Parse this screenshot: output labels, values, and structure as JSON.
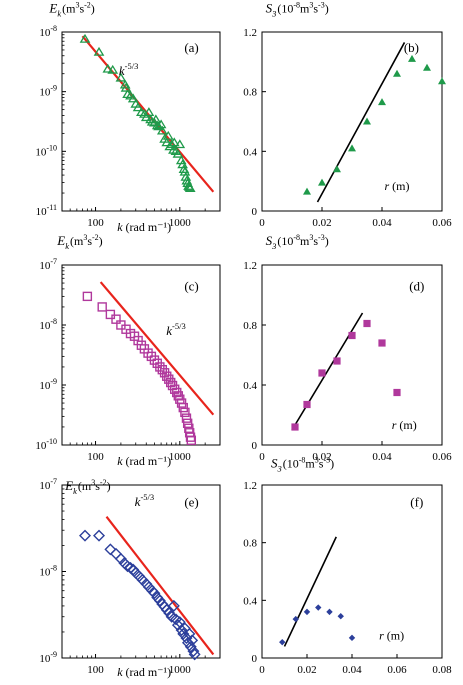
{
  "chart_data": [
    {
      "type": "scatter",
      "panel_label": "(a)",
      "ylabel_html": {
        "main": "E",
        "sub": "k",
        "unit_pre": "(m",
        "sup1": "3",
        "mid": "s",
        "sup2": "-2",
        "unit_post": ")"
      },
      "xlabel": "k (rad m⁻¹)",
      "x_scale": "log",
      "y_scale": "log",
      "xlim": [
        40,
        3000
      ],
      "ylim": [
        1e-11,
        1e-08
      ],
      "x_ticks": [
        {
          "v": 100,
          "label": "100"
        },
        {
          "v": 1000,
          "label": "1000"
        }
      ],
      "y_ticks": [
        {
          "v": 1e-11,
          "exp": "-11"
        },
        {
          "v": 1e-10,
          "exp": "-10"
        },
        {
          "v": 1e-09,
          "exp": "-9"
        },
        {
          "v": 1e-08,
          "exp": "-8"
        }
      ],
      "slope_label": {
        "base": "k",
        "exp": "-5/3"
      },
      "line_color": "#e8241c",
      "marker": "triangle",
      "marker_color": "#1f9a4a",
      "fit_line": [
        [
          70,
          8.5e-09
        ],
        [
          2500,
          2.1e-11
        ]
      ],
      "points": [
        [
          75,
          7.6e-09
        ],
        [
          110,
          4.6e-09
        ],
        [
          140,
          2.4e-09
        ],
        [
          160,
          2.3e-09
        ],
        [
          200,
          1.7e-09
        ],
        [
          225,
          1.3e-09
        ],
        [
          230,
          1.15e-09
        ],
        [
          240,
          9e-10
        ],
        [
          260,
          8.5e-10
        ],
        [
          280,
          7.6e-10
        ],
        [
          300,
          6.2e-10
        ],
        [
          320,
          5.4e-10
        ],
        [
          350,
          4.5e-10
        ],
        [
          380,
          4.2e-10
        ],
        [
          400,
          3.7e-10
        ],
        [
          430,
          4.5e-10
        ],
        [
          450,
          3.4e-10
        ],
        [
          470,
          3.1e-10
        ],
        [
          500,
          3e-10
        ],
        [
          520,
          3.4e-10
        ],
        [
          540,
          2.7e-10
        ],
        [
          560,
          2.6e-10
        ],
        [
          600,
          2.8e-10
        ],
        [
          620,
          2.2e-10
        ],
        [
          660,
          1.6e-10
        ],
        [
          700,
          1.4e-10
        ],
        [
          730,
          1.8e-10
        ],
        [
          760,
          1.2e-10
        ],
        [
          800,
          1.3e-10
        ],
        [
          840,
          1.05e-10
        ],
        [
          860,
          1.4e-10
        ],
        [
          900,
          1e-10
        ],
        [
          950,
          9e-11
        ],
        [
          1000,
          1.3e-10
        ],
        [
          1040,
          7e-11
        ],
        [
          1080,
          6e-11
        ],
        [
          1120,
          5e-11
        ],
        [
          1150,
          4.5e-11
        ],
        [
          1180,
          3.7e-11
        ],
        [
          1210,
          3.2e-11
        ],
        [
          1240,
          2.9e-11
        ],
        [
          1270,
          2.6e-11
        ],
        [
          1300,
          2.5e-11
        ],
        [
          1330,
          2.4e-11
        ]
      ]
    },
    {
      "type": "scatter",
      "panel_label": "(b)",
      "ylabel_html": {
        "main": "S",
        "sub": "3",
        "unit_pre": "(10",
        "sup1": "-8",
        "mid": "m",
        "sup2": "3",
        "unit_post": "s",
        "sup3": "-3",
        "unit_end": ")"
      },
      "xlabel": "r (m)",
      "xlim": [
        0,
        0.06
      ],
      "ylim": [
        0,
        1.2
      ],
      "x_ticks": [
        {
          "v": 0,
          "label": "0"
        },
        {
          "v": 0.02,
          "label": "0.02"
        },
        {
          "v": 0.04,
          "label": "0.04"
        },
        {
          "v": 0.06,
          "label": "0.06"
        }
      ],
      "y_ticks": [
        {
          "v": 0,
          "label": "0"
        },
        {
          "v": 0.4,
          "label": "0.4"
        },
        {
          "v": 0.8,
          "label": "0.8"
        },
        {
          "v": 1.2,
          "label": "1.2"
        }
      ],
      "line_color": "#000000",
      "marker": "filled-triangle",
      "marker_color": "#1f9a4a",
      "fit_line": [
        [
          0.0185,
          0.06
        ],
        [
          0.0475,
          1.13
        ]
      ],
      "points": [
        [
          0.015,
          0.13
        ],
        [
          0.02,
          0.19
        ],
        [
          0.025,
          0.28
        ],
        [
          0.03,
          0.42
        ],
        [
          0.035,
          0.6
        ],
        [
          0.04,
          0.73
        ],
        [
          0.045,
          0.92
        ],
        [
          0.05,
          1.02
        ],
        [
          0.055,
          0.96
        ],
        [
          0.06,
          0.87
        ]
      ]
    },
    {
      "type": "scatter",
      "panel_label": "(c)",
      "ylabel_html": {
        "main": "E",
        "sub": "k",
        "unit_pre": "(m",
        "sup1": "3",
        "mid": "s",
        "sup2": "-2",
        "unit_post": ")"
      },
      "xlabel": "k (rad m⁻¹)",
      "x_scale": "log",
      "y_scale": "log",
      "xlim": [
        40,
        3000
      ],
      "ylim": [
        1e-10,
        1e-07
      ],
      "x_ticks": [
        {
          "v": 100,
          "label": "100"
        },
        {
          "v": 1000,
          "label": "1000"
        }
      ],
      "y_ticks": [
        {
          "v": 1e-10,
          "exp": "-10"
        },
        {
          "v": 1e-09,
          "exp": "-9"
        },
        {
          "v": 1e-08,
          "exp": "-8"
        },
        {
          "v": 1e-07,
          "exp": "-7"
        }
      ],
      "slope_label": {
        "base": "k",
        "exp": "-5/3"
      },
      "line_color": "#e8241c",
      "marker": "square",
      "marker_color": "#b0389c",
      "fit_line": [
        [
          115,
          5.2e-08
        ],
        [
          2500,
          3.2e-10
        ]
      ],
      "points": [
        [
          80,
          3e-08
        ],
        [
          120,
          2e-08
        ],
        [
          150,
          1.5e-08
        ],
        [
          175,
          1.25e-08
        ],
        [
          200,
          1e-08
        ],
        [
          230,
          8.5e-09
        ],
        [
          260,
          7.2e-09
        ],
        [
          290,
          6.5e-09
        ],
        [
          320,
          5.5e-09
        ],
        [
          350,
          4.6e-09
        ],
        [
          380,
          4e-09
        ],
        [
          420,
          3.4e-09
        ],
        [
          460,
          3e-09
        ],
        [
          500,
          2.6e-09
        ],
        [
          540,
          2.3e-09
        ],
        [
          580,
          2e-09
        ],
        [
          620,
          1.8e-09
        ],
        [
          660,
          1.6e-09
        ],
        [
          700,
          1.4e-09
        ],
        [
          740,
          1.25e-09
        ],
        [
          780,
          1.1e-09
        ],
        [
          820,
          9.8e-10
        ],
        [
          870,
          8.5e-10
        ],
        [
          920,
          7.5e-10
        ],
        [
          960,
          6.6e-10
        ],
        [
          1000,
          5.8e-10
        ],
        [
          1050,
          5e-10
        ],
        [
          1100,
          4.2e-10
        ],
        [
          1150,
          3.5e-10
        ],
        [
          1200,
          2.8e-10
        ],
        [
          1240,
          2.3e-10
        ],
        [
          1280,
          1.9e-10
        ],
        [
          1310,
          1.6e-10
        ],
        [
          1340,
          1.35e-10
        ],
        [
          1370,
          1.2e-10
        ]
      ]
    },
    {
      "type": "scatter",
      "panel_label": "(d)",
      "ylabel_html": {
        "main": "S",
        "sub": "3",
        "unit_pre": "(10",
        "sup1": "-8",
        "mid": "m",
        "sup2": "3",
        "unit_post": "s",
        "sup3": "-3",
        "unit_end": ")"
      },
      "xlabel": "r (m)",
      "xlim": [
        0,
        0.06
      ],
      "ylim": [
        0,
        1.2
      ],
      "x_ticks": [
        {
          "v": 0,
          "label": "0"
        },
        {
          "v": 0.02,
          "label": "0.02"
        },
        {
          "v": 0.04,
          "label": "0.04"
        },
        {
          "v": 0.06,
          "label": "0.06"
        }
      ],
      "y_ticks": [
        {
          "v": 0,
          "label": "0"
        },
        {
          "v": 0.4,
          "label": "0.4"
        },
        {
          "v": 0.8,
          "label": "0.8"
        },
        {
          "v": 1.2,
          "label": "1.2"
        }
      ],
      "line_color": "#000000",
      "marker": "filled-square",
      "marker_color": "#b0389c",
      "fit_line": [
        [
          0.01,
          0.1
        ],
        [
          0.0335,
          0.88
        ]
      ],
      "points": [
        [
          0.011,
          0.12
        ],
        [
          0.015,
          0.27
        ],
        [
          0.02,
          0.48
        ],
        [
          0.025,
          0.56
        ],
        [
          0.03,
          0.73
        ],
        [
          0.035,
          0.81
        ],
        [
          0.04,
          0.68
        ],
        [
          0.045,
          0.35
        ]
      ]
    },
    {
      "type": "scatter",
      "panel_label": "(e)",
      "ylabel_html": {
        "main": "E",
        "sub": "k",
        "unit_pre": "(m",
        "sup1": "3",
        "mid": "s",
        "sup2": "-2",
        "unit_post": ")"
      },
      "xlabel": "k (rad m⁻¹)",
      "x_scale": "log",
      "y_scale": "log",
      "xlim": [
        40,
        3000
      ],
      "ylim": [
        1e-09,
        1e-07
      ],
      "x_ticks": [
        {
          "v": 100,
          "label": "100"
        },
        {
          "v": 1000,
          "label": "1000"
        }
      ],
      "y_ticks": [
        {
          "v": 1e-09,
          "exp": "-9"
        },
        {
          "v": 1e-08,
          "exp": "-8"
        },
        {
          "v": 1e-07,
          "exp": "-7"
        }
      ],
      "slope_label": {
        "base": "k",
        "exp": "-5/3"
      },
      "line_color": "#e8241c",
      "marker": "diamond",
      "marker_color": "#2c3f9b",
      "fit_line": [
        [
          135,
          4.3e-08
        ],
        [
          2500,
          1.1e-09
        ]
      ],
      "points": [
        [
          75,
          2.6e-08
        ],
        [
          110,
          2.6e-08
        ],
        [
          150,
          1.8e-08
        ],
        [
          175,
          1.6e-08
        ],
        [
          200,
          1.4e-08
        ],
        [
          220,
          1.25e-08
        ],
        [
          240,
          1.15e-08
        ],
        [
          260,
          1.1e-08
        ],
        [
          280,
          1.05e-08
        ],
        [
          300,
          9.6e-09
        ],
        [
          330,
          8.8e-09
        ],
        [
          360,
          8e-09
        ],
        [
          400,
          7.2e-09
        ],
        [
          430,
          6.6e-09
        ],
        [
          470,
          6e-09
        ],
        [
          500,
          5.6e-09
        ],
        [
          540,
          5e-09
        ],
        [
          580,
          4.6e-09
        ],
        [
          620,
          4.2e-09
        ],
        [
          660,
          3.9e-09
        ],
        [
          700,
          3.6e-09
        ],
        [
          750,
          3.3e-09
        ],
        [
          800,
          3e-09
        ],
        [
          850,
          4e-09
        ],
        [
          900,
          2.8e-09
        ],
        [
          950,
          2.4e-09
        ],
        [
          1000,
          2.6e-09
        ],
        [
          1050,
          2.1e-09
        ],
        [
          1100,
          1.9e-09
        ],
        [
          1150,
          2.2e-09
        ],
        [
          1200,
          1.7e-09
        ],
        [
          1250,
          1.5e-09
        ],
        [
          1300,
          1.9e-09
        ],
        [
          1350,
          1.35e-09
        ],
        [
          1400,
          1.6e-09
        ],
        [
          1450,
          1.2e-09
        ],
        [
          1500,
          1.1e-09
        ]
      ]
    },
    {
      "type": "scatter",
      "panel_label": "(f)",
      "ylabel_html": {
        "main": "S",
        "sub": "3",
        "unit_pre": "(10",
        "sup1": "-8",
        "mid": "m",
        "sup2": "3",
        "unit_post": "s",
        "sup3": "-3",
        "unit_end": ")"
      },
      "xlabel": "r (m)",
      "xlim": [
        0,
        0.08
      ],
      "ylim": [
        0,
        1.2
      ],
      "x_ticks": [
        {
          "v": 0,
          "label": "0"
        },
        {
          "v": 0.02,
          "label": "0.02"
        },
        {
          "v": 0.04,
          "label": "0.04"
        },
        {
          "v": 0.06,
          "label": "0.06"
        },
        {
          "v": 0.08,
          "label": "0.08"
        }
      ],
      "y_ticks": [
        {
          "v": 0,
          "label": "0"
        },
        {
          "v": 0.4,
          "label": "0.4"
        },
        {
          "v": 0.8,
          "label": "0.8"
        },
        {
          "v": 1.2,
          "label": "1.2"
        }
      ],
      "line_color": "#000000",
      "marker": "filled-diamond",
      "marker_color": "#2c3f9b",
      "fit_line": [
        [
          0.01,
          0.08
        ],
        [
          0.033,
          0.84
        ]
      ],
      "points": [
        [
          0.009,
          0.11
        ],
        [
          0.015,
          0.27
        ],
        [
          0.02,
          0.32
        ],
        [
          0.025,
          0.35
        ],
        [
          0.03,
          0.32
        ],
        [
          0.035,
          0.29
        ],
        [
          0.04,
          0.14
        ]
      ]
    }
  ]
}
